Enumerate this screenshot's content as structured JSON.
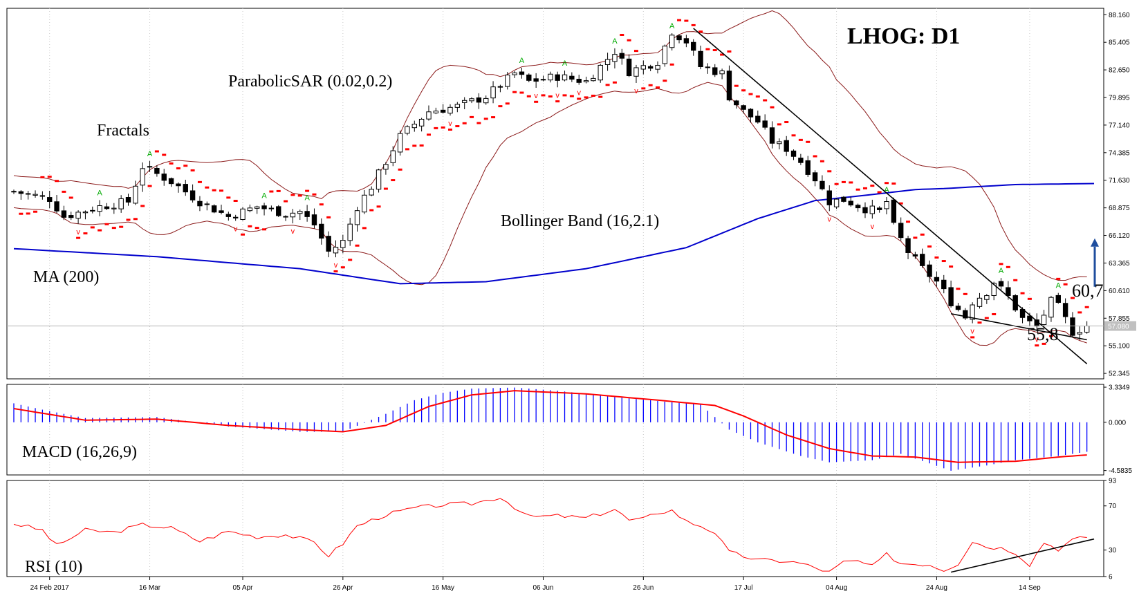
{
  "chart_data": [
    {
      "type": "candlestick",
      "title": "LHOG: D1",
      "symbol": "LHOG",
      "timeframe": "D1",
      "y_ticks": [
        "88.160",
        "85.405",
        "82.650",
        "79.895",
        "77.140",
        "74.385",
        "71.630",
        "68.875",
        "66.120",
        "63.365",
        "60.610",
        "57.855",
        "55.100",
        "52.345"
      ],
      "ylim": [
        51.8,
        88.8
      ],
      "last_price": "57.080",
      "x_ticks": [
        "24 Feb 2017",
        "16 Mar",
        "05 Apr",
        "26 Apr",
        "16 May",
        "06 Jun",
        "26 Jun",
        "17 Jul",
        "04 Aug",
        "24 Aug",
        "14 Sep"
      ],
      "x_tick_bars": [
        5,
        19,
        32,
        46,
        60,
        74,
        88,
        102,
        115,
        129,
        142
      ],
      "bar_count": 152,
      "close_key": [
        [
          0,
          70.5
        ],
        [
          5,
          69.8
        ],
        [
          7,
          68.0
        ],
        [
          12,
          69.0
        ],
        [
          16,
          69.5
        ],
        [
          18,
          73.0
        ],
        [
          22,
          71.5
        ],
        [
          26,
          69.5
        ],
        [
          30,
          68.0
        ],
        [
          34,
          69.0
        ],
        [
          38,
          68.3
        ],
        [
          40,
          68.5
        ],
        [
          42,
          67.2
        ],
        [
          44,
          64.5
        ],
        [
          46,
          65.5
        ],
        [
          48,
          69.0
        ],
        [
          50,
          71.0
        ],
        [
          54,
          76.0
        ],
        [
          58,
          78.5
        ],
        [
          62,
          79.0
        ],
        [
          66,
          80.0
        ],
        [
          70,
          82.3
        ],
        [
          72,
          81.5
        ],
        [
          76,
          82.0
        ],
        [
          80,
          81.5
        ],
        [
          84,
          84.5
        ],
        [
          86,
          82.5
        ],
        [
          90,
          83.5
        ],
        [
          92,
          86.5
        ],
        [
          94,
          85.5
        ],
        [
          96,
          83.0
        ],
        [
          99,
          82.3
        ],
        [
          100,
          80.0
        ],
        [
          102,
          78.5
        ],
        [
          104,
          77.5
        ],
        [
          106,
          75.5
        ],
        [
          108,
          74.8
        ],
        [
          110,
          73.5
        ],
        [
          112,
          71.8
        ],
        [
          114,
          69.5
        ],
        [
          116,
          69.7
        ],
        [
          119,
          68.8
        ],
        [
          121,
          68.5
        ],
        [
          122,
          69.5
        ],
        [
          123,
          67.0
        ],
        [
          125,
          64.5
        ],
        [
          127,
          62.8
        ],
        [
          129,
          61.5
        ],
        [
          131,
          59.5
        ],
        [
          133,
          58.0
        ],
        [
          134,
          59.5
        ],
        [
          136,
          60.5
        ],
        [
          137,
          61.5
        ],
        [
          139,
          60.0
        ],
        [
          141,
          57.8
        ],
        [
          143,
          57.0
        ],
        [
          145,
          59.5
        ],
        [
          146,
          59.0
        ],
        [
          148,
          56.5
        ],
        [
          150,
          57.08
        ]
      ],
      "ma200_key": [
        [
          0,
          64.8
        ],
        [
          20,
          64.0
        ],
        [
          40,
          62.8
        ],
        [
          54,
          61.3
        ],
        [
          66,
          61.5
        ],
        [
          80,
          62.8
        ],
        [
          94,
          64.9
        ],
        [
          104,
          67.8
        ],
        [
          112,
          69.6
        ],
        [
          120,
          70.2
        ],
        [
          126,
          70.7
        ],
        [
          130,
          70.8
        ],
        [
          140,
          71.2
        ],
        [
          151,
          71.3
        ]
      ],
      "series": [
        {
          "label": "MA (200)",
          "color": "#0000cc"
        },
        {
          "label": "Bollinger Band (16,2.1)",
          "color": "#8b1a1a"
        },
        {
          "label": "ParabolicSAR (0.02,0.2)",
          "color": "#ff0000"
        },
        {
          "label": "Fractals",
          "color": "#00aa00"
        }
      ],
      "annotations": [
        {
          "text": "60,7",
          "value": 60.7
        },
        {
          "text": "55,8",
          "value": 55.8
        }
      ],
      "trendline_price": {
        "start_bar": 95,
        "start": 86.8,
        "end_bar": 150,
        "end": 53.3
      },
      "support_line_price": {
        "start_bar": 131,
        "start": 58.3,
        "end_bar": 150,
        "end": 55.7
      },
      "arrow_direction": "up"
    },
    {
      "type": "bar",
      "label": "MACD (16,26,9)",
      "y_ticks": [
        "3.3349",
        "0.000",
        "-4.5835"
      ],
      "ylim": [
        -5.0,
        3.6
      ],
      "hist_key": [
        [
          0,
          1.8
        ],
        [
          4,
          1.2
        ],
        [
          10,
          0.4
        ],
        [
          20,
          0.5
        ],
        [
          30,
          -0.4
        ],
        [
          40,
          -0.9
        ],
        [
          46,
          -0.9
        ],
        [
          52,
          0.8
        ],
        [
          56,
          2.1
        ],
        [
          60,
          2.8
        ],
        [
          64,
          3.2
        ],
        [
          70,
          3.3
        ],
        [
          76,
          3.0
        ],
        [
          84,
          2.4
        ],
        [
          92,
          1.9
        ],
        [
          96,
          1.7
        ],
        [
          100,
          -0.7
        ],
        [
          104,
          -1.9
        ],
        [
          110,
          -3.2
        ],
        [
          114,
          -3.8
        ],
        [
          120,
          -3.6
        ],
        [
          124,
          -3.0
        ],
        [
          128,
          -3.9
        ],
        [
          131,
          -4.6
        ],
        [
          136,
          -4.1
        ],
        [
          140,
          -3.6
        ],
        [
          146,
          -3.2
        ],
        [
          150,
          -2.8
        ]
      ],
      "signal_key": [
        [
          0,
          1.3
        ],
        [
          10,
          0.2
        ],
        [
          20,
          0.3
        ],
        [
          30,
          -0.3
        ],
        [
          40,
          -0.7
        ],
        [
          46,
          -0.9
        ],
        [
          52,
          -0.3
        ],
        [
          58,
          1.5
        ],
        [
          64,
          2.6
        ],
        [
          70,
          3.0
        ],
        [
          80,
          2.7
        ],
        [
          90,
          2.1
        ],
        [
          98,
          1.6
        ],
        [
          102,
          0.6
        ],
        [
          108,
          -1.2
        ],
        [
          114,
          -2.5
        ],
        [
          120,
          -3.2
        ],
        [
          126,
          -3.3
        ],
        [
          132,
          -3.8
        ],
        [
          140,
          -3.7
        ],
        [
          146,
          -3.3
        ],
        [
          150,
          -3.1
        ]
      ],
      "colors": {
        "histogram": "#0000ff",
        "signal": "#ff0000"
      }
    },
    {
      "type": "line",
      "label": "RSI (10)",
      "y_ticks": [
        "93",
        "70",
        "30",
        "6"
      ],
      "ylim": [
        6,
        93
      ],
      "rsi_key": [
        [
          0,
          54
        ],
        [
          4,
          48
        ],
        [
          6,
          34
        ],
        [
          10,
          48
        ],
        [
          14,
          46
        ],
        [
          18,
          53
        ],
        [
          22,
          50
        ],
        [
          26,
          38
        ],
        [
          30,
          47
        ],
        [
          34,
          42
        ],
        [
          38,
          44
        ],
        [
          42,
          37
        ],
        [
          44,
          25
        ],
        [
          46,
          36
        ],
        [
          48,
          52
        ],
        [
          52,
          62
        ],
        [
          56,
          68
        ],
        [
          60,
          71
        ],
        [
          64,
          72
        ],
        [
          68,
          78
        ],
        [
          72,
          60
        ],
        [
          76,
          61
        ],
        [
          80,
          59
        ],
        [
          84,
          67
        ],
        [
          86,
          57
        ],
        [
          88,
          58
        ],
        [
          90,
          64
        ],
        [
          92,
          66
        ],
        [
          94,
          56
        ],
        [
          96,
          52
        ],
        [
          98,
          46
        ],
        [
          100,
          28
        ],
        [
          104,
          21
        ],
        [
          108,
          20
        ],
        [
          110,
          18
        ],
        [
          114,
          10
        ],
        [
          116,
          19
        ],
        [
          118,
          20
        ],
        [
          120,
          15
        ],
        [
          122,
          26
        ],
        [
          124,
          18
        ],
        [
          128,
          17
        ],
        [
          130,
          12
        ],
        [
          132,
          18
        ],
        [
          134,
          38
        ],
        [
          136,
          33
        ],
        [
          138,
          32
        ],
        [
          140,
          28
        ],
        [
          142,
          17
        ],
        [
          144,
          37
        ],
        [
          146,
          31
        ],
        [
          148,
          39
        ],
        [
          150,
          42
        ]
      ],
      "color": "#ff0000",
      "trendline": {
        "start_bar": 131,
        "start": 10,
        "end_bar": 151,
        "end": 40
      }
    }
  ]
}
